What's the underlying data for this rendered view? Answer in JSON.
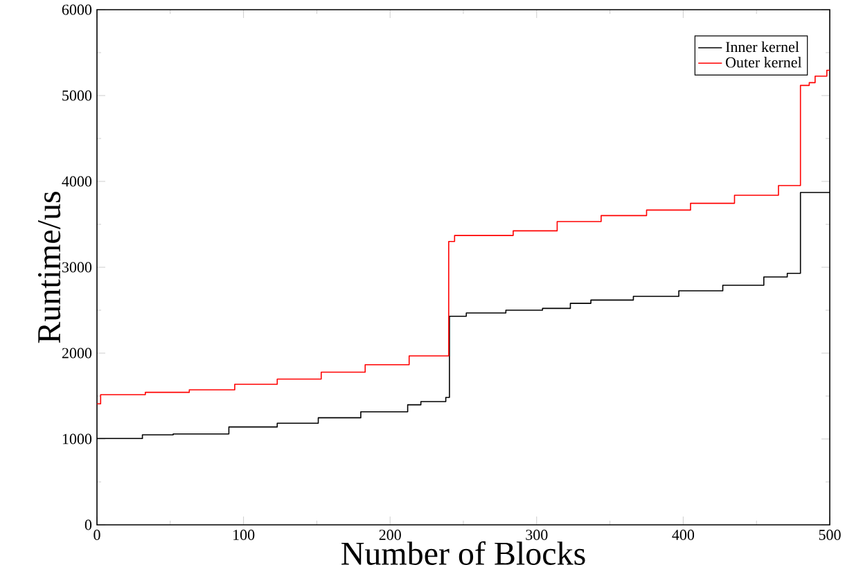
{
  "chart_data": {
    "type": "step",
    "xlabel": "Number of Blocks",
    "ylabel": "Runtime/us",
    "xlim": [
      0,
      500
    ],
    "ylim": [
      0,
      6000
    ],
    "xticks": [
      0,
      100,
      200,
      300,
      400,
      500
    ],
    "yticks": [
      0,
      1000,
      2000,
      3000,
      4000,
      5000,
      6000
    ],
    "legend": "top right",
    "grid": false,
    "series": [
      {
        "name": "Inner kernel",
        "color": "#000000",
        "x": [
          0,
          31,
          52,
          90,
          123,
          151,
          180,
          212,
          221,
          238,
          240.5,
          252,
          279,
          304,
          323,
          337,
          366,
          397,
          427,
          455,
          471,
          480,
          500
        ],
        "values": [
          1005,
          1048,
          1059,
          1140,
          1183,
          1247,
          1317,
          1398,
          1435,
          1484,
          2430,
          2468,
          2500,
          2521,
          2580,
          2618,
          2661,
          2726,
          2790,
          2887,
          2930,
          3871,
          3880
        ]
      },
      {
        "name": "Outer kernel",
        "color": "#ff0000",
        "x": [
          0,
          2.5,
          33,
          63,
          94,
          123,
          153,
          183,
          213,
          240,
          244,
          284,
          314,
          344,
          375,
          405,
          435,
          465,
          480,
          486,
          490,
          498,
          500
        ],
        "values": [
          1409,
          1516,
          1543,
          1573,
          1637,
          1697,
          1778,
          1865,
          1968,
          3300,
          3370,
          3424,
          3532,
          3602,
          3666,
          3745,
          3839,
          3952,
          5118,
          5150,
          5226,
          5295,
          5300
        ]
      }
    ]
  }
}
